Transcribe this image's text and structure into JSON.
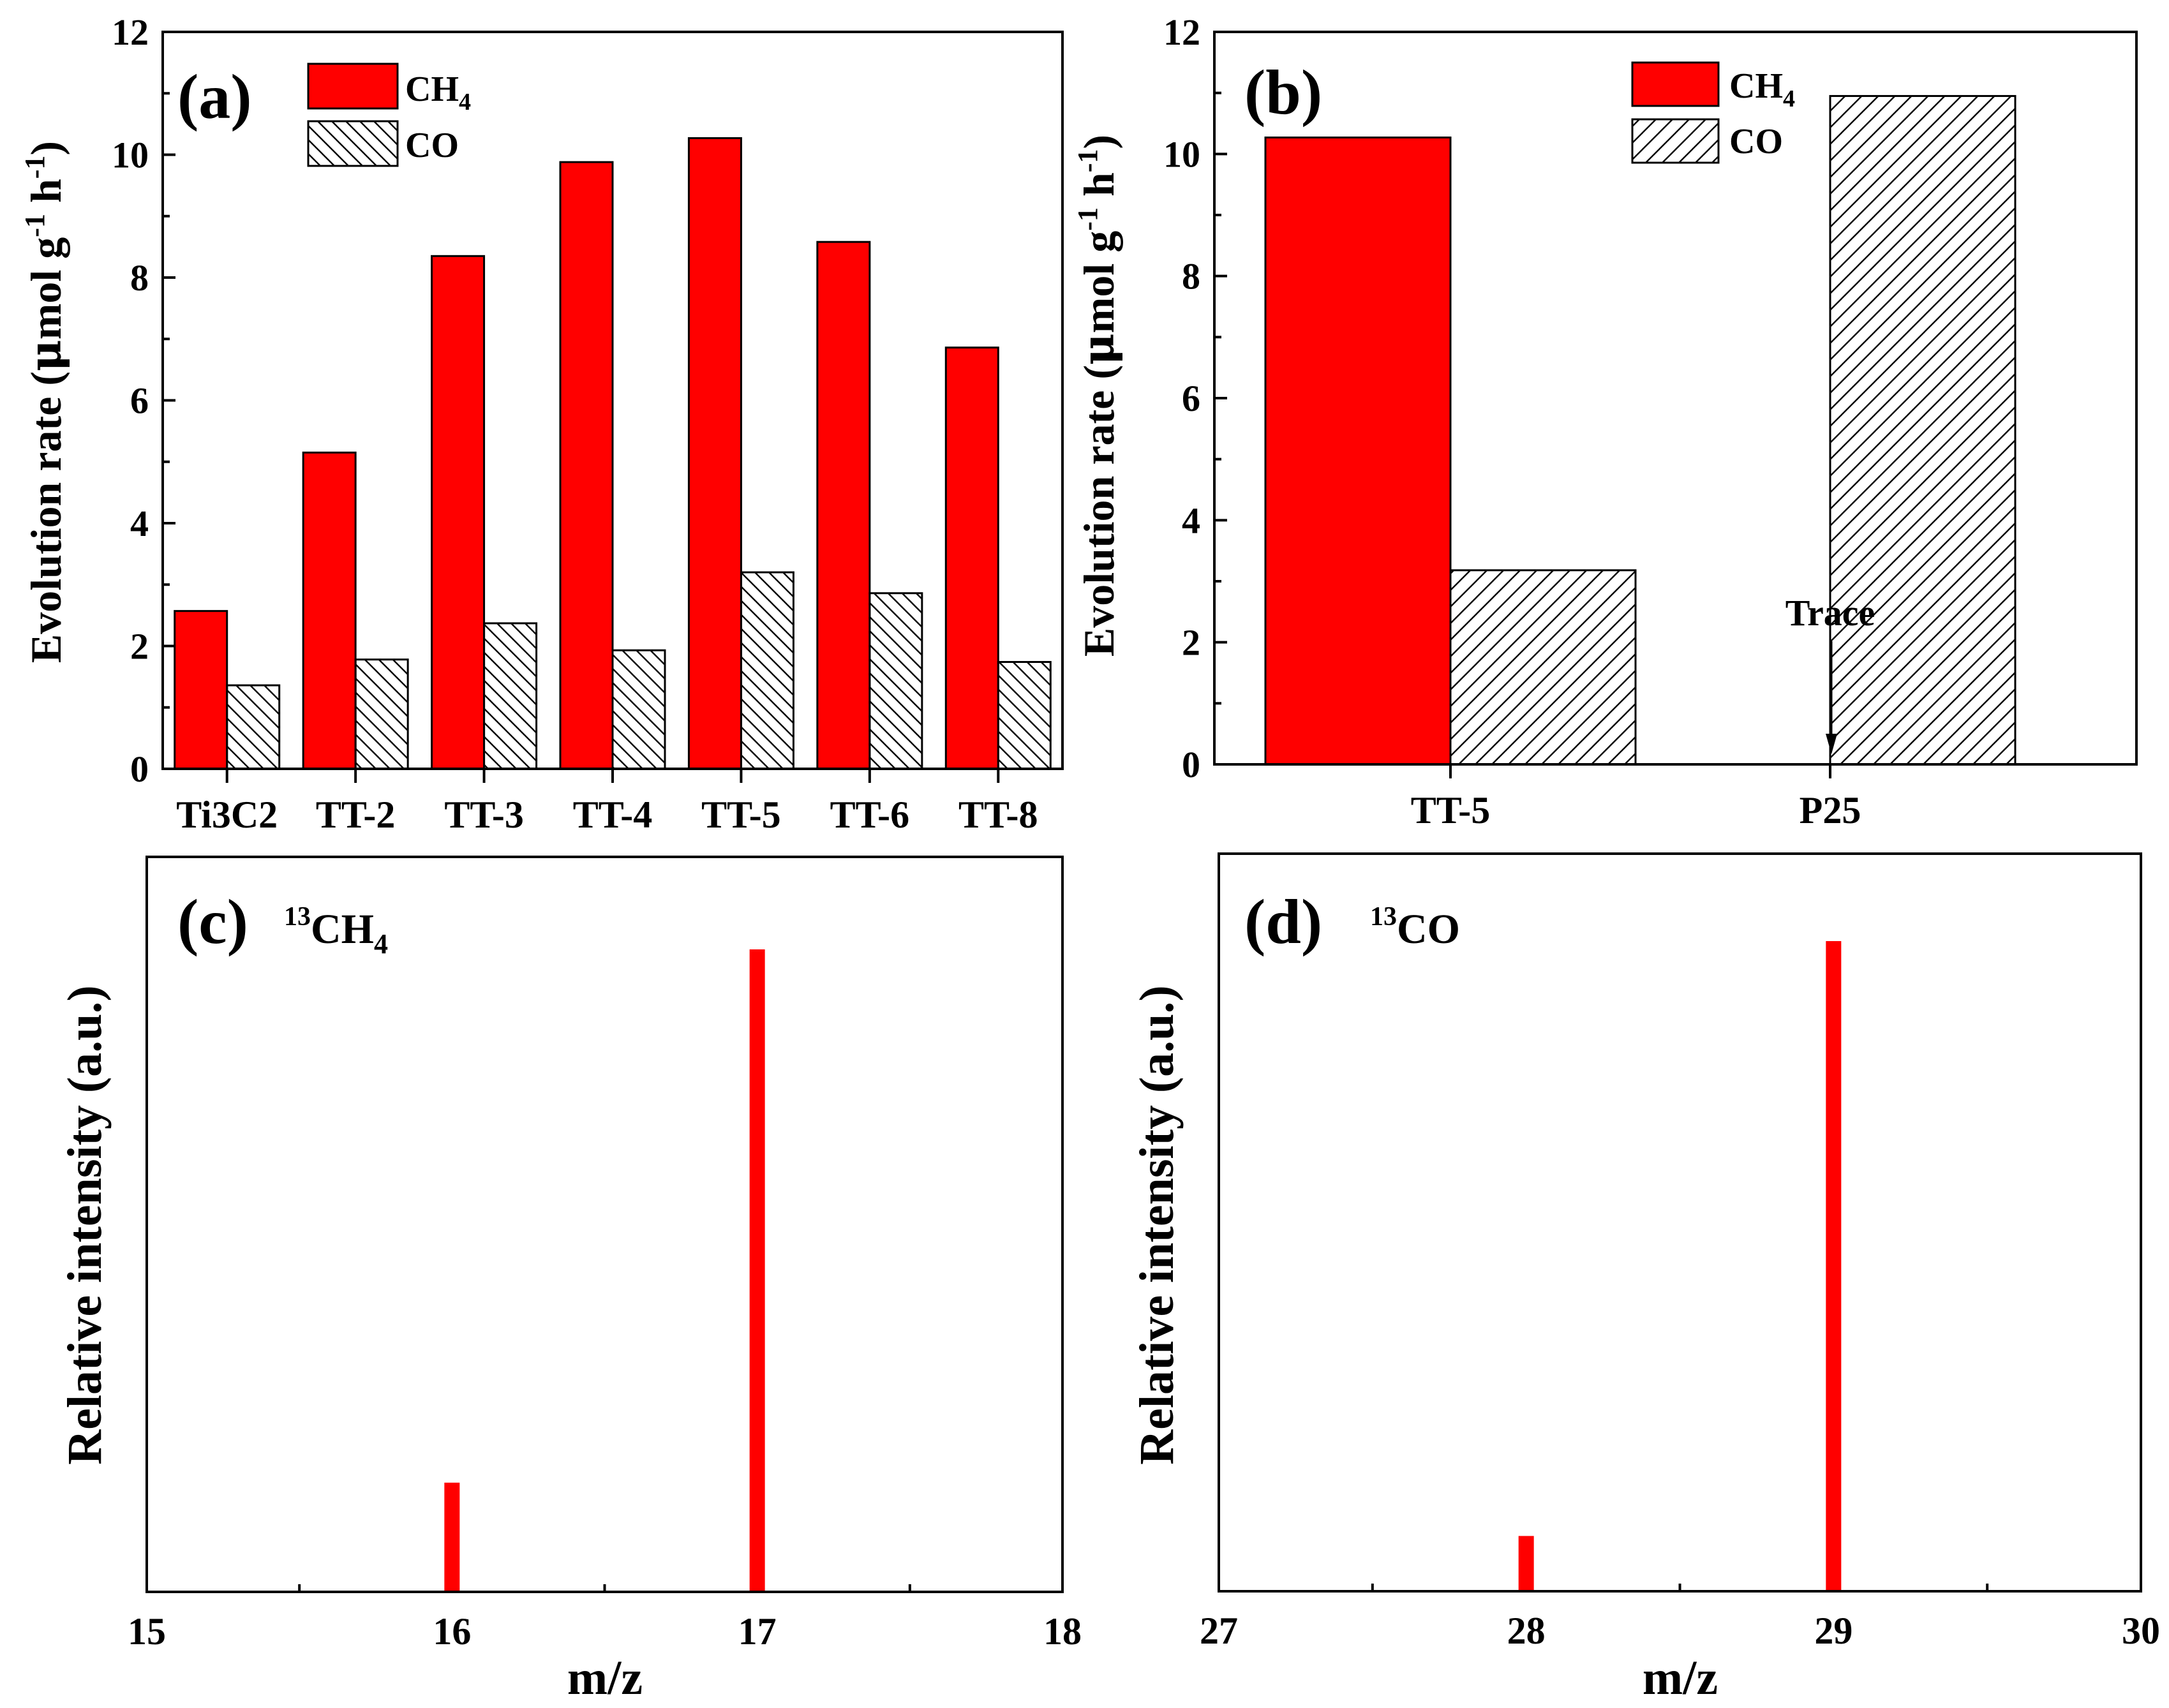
{
  "chart_data": [
    {
      "id": "a",
      "panel_label": "(a)",
      "type": "bar",
      "categories": [
        "Ti3C2",
        "TT-2",
        "TT-3",
        "TT-4",
        "TT-5",
        "TT-6",
        "TT-8"
      ],
      "series": [
        {
          "name": "CH4",
          "legend_main": "CH",
          "legend_sub": "4",
          "values": [
            2.57,
            5.15,
            8.35,
            9.88,
            10.27,
            8.58,
            6.86
          ]
        },
        {
          "name": "CO",
          "legend_main": "CO",
          "legend_sub": "",
          "values": [
            1.36,
            1.78,
            2.37,
            1.93,
            3.2,
            2.86,
            1.74
          ]
        }
      ],
      "ylabel": "Evolution rate (μmol g⁻¹ h⁻¹)",
      "ylim": [
        0,
        12
      ],
      "yticks": [
        0,
        2,
        4,
        6,
        8,
        10,
        12
      ],
      "colors": {
        "CH4": "#ff0000",
        "CO": "#ffffff"
      },
      "hatch": "backslash",
      "legend": "top-left"
    },
    {
      "id": "b",
      "panel_label": "(b)",
      "type": "bar",
      "categories": [
        "TT-5",
        "P25"
      ],
      "series": [
        {
          "name": "CH4",
          "legend_main": "CH",
          "legend_sub": "4",
          "values": [
            10.27,
            0
          ]
        },
        {
          "name": "CO",
          "legend_main": "CO",
          "legend_sub": "",
          "values": [
            3.18,
            10.95
          ]
        }
      ],
      "ylabel": "Evolution rate (μmol g⁻¹ h⁻¹)",
      "ylim": [
        0,
        12
      ],
      "yticks": [
        0,
        2,
        4,
        6,
        8,
        10,
        12
      ],
      "colors": {
        "CH4": "#ff0000",
        "CO": "#ffffff"
      },
      "hatch": "slash",
      "annotation": {
        "text": "Trace",
        "category": "P25",
        "series": "CH4"
      },
      "legend": "top-center"
    },
    {
      "id": "c",
      "panel_label": "(c)",
      "type": "bar",
      "title_sup": "13",
      "title_main": "CH",
      "title_sub": "4",
      "x": [
        16,
        17
      ],
      "values": [
        0.17,
        1.0
      ],
      "xlabel": "m/z",
      "ylabel": "Relative intensity (a.u.)",
      "xlim": [
        15,
        18
      ],
      "xticks": [
        15,
        16,
        17,
        18
      ],
      "color": "#ff0000"
    },
    {
      "id": "d",
      "panel_label": "(d)",
      "type": "bar",
      "title_sup": "13",
      "title_main": "CO",
      "title_sub": "",
      "x": [
        28,
        29
      ],
      "values": [
        0.085,
        1.0
      ],
      "xlabel": "m/z",
      "ylabel": "Relative intensity (a.u.)",
      "xlim": [
        27,
        30
      ],
      "xticks": [
        27,
        28,
        29,
        30
      ],
      "color": "#ff0000"
    }
  ]
}
